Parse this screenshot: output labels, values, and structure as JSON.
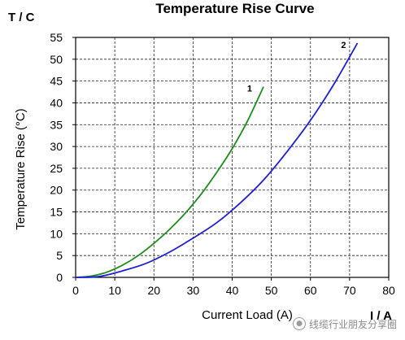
{
  "chart_data": {
    "type": "line",
    "title": "Temperature Rise Curve",
    "corner_label": "T / C",
    "ylabel": "Temperature Rise (°C)",
    "xlabel": "Current Load (A)",
    "x_unit_label": "I / A",
    "xlim": [
      0,
      80
    ],
    "ylim": [
      0,
      55
    ],
    "x_ticks": [
      0,
      10,
      20,
      30,
      40,
      50,
      60,
      70,
      80
    ],
    "y_ticks": [
      0,
      5,
      10,
      15,
      20,
      25,
      30,
      35,
      40,
      45,
      50,
      55
    ],
    "grid": true,
    "grid_style": "dashed",
    "series": [
      {
        "name": "1",
        "color": "#1e8c1e",
        "x": [
          0,
          4,
          8,
          12,
          16,
          20,
          24,
          28,
          32,
          36,
          40,
          44,
          48
        ],
        "y": [
          0,
          0.3,
          1.2,
          2.8,
          5.0,
          7.8,
          11.0,
          14.7,
          19.0,
          24.0,
          29.5,
          36.0,
          43.7
        ]
      },
      {
        "name": "2",
        "color": "#1f1fd6",
        "x": [
          0,
          6,
          12,
          18,
          24,
          30,
          36,
          42,
          48,
          54,
          60,
          66,
          72
        ],
        "y": [
          0,
          0.2,
          1.5,
          3.2,
          5.8,
          9.0,
          12.5,
          17.0,
          22.3,
          28.8,
          36.0,
          44.3,
          53.7
        ]
      }
    ]
  },
  "watermark": {
    "icon": "wechat-icon",
    "text": "线缆行业朋友分享圈"
  }
}
